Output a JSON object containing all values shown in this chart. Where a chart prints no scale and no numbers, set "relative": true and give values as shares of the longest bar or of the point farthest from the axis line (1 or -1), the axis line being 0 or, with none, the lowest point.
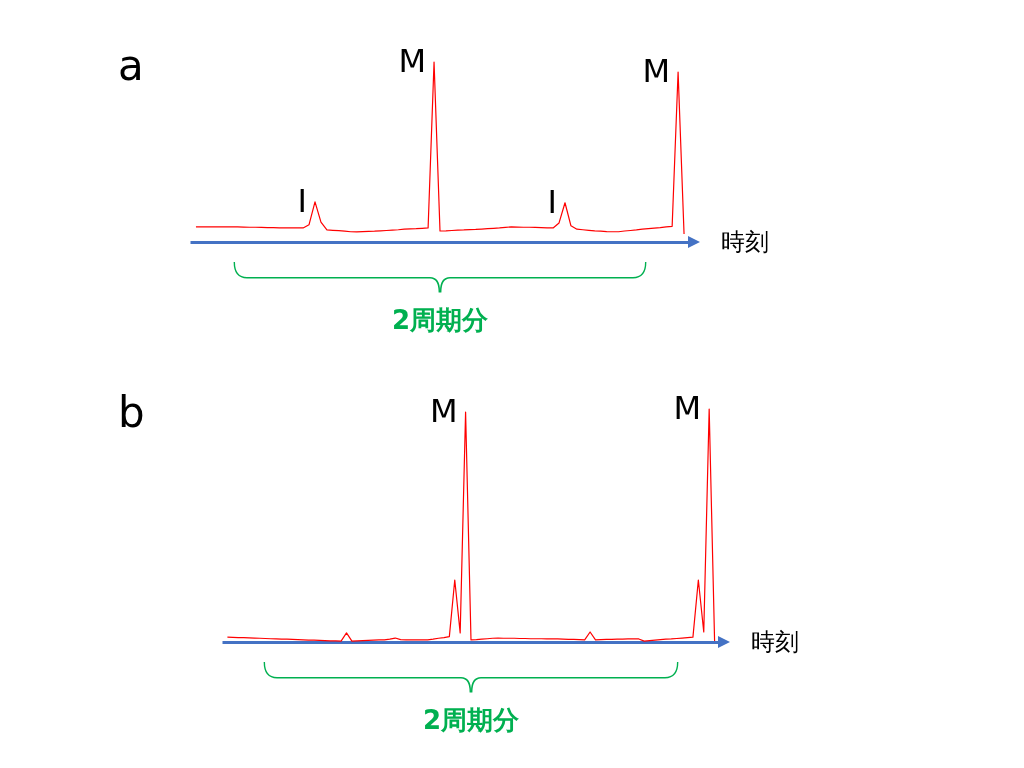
{
  "chart_data": [
    {
      "type": "line",
      "title": "a",
      "xlabel": "時刻",
      "relative": true,
      "categories": [
        null,
        null,
        null,
        null,
        null,
        null,
        null,
        null,
        null,
        null,
        null,
        null,
        null,
        null,
        null,
        null,
        null,
        null,
        null,
        null,
        null,
        null,
        null,
        null,
        null,
        null,
        null,
        null,
        null,
        null,
        null,
        null,
        null,
        null,
        null,
        null,
        null,
        null,
        null,
        null,
        null,
        null,
        null,
        null,
        null,
        null,
        null,
        null,
        null,
        null,
        null,
        null,
        null,
        null,
        null,
        null,
        null,
        null,
        null,
        null,
        null,
        null,
        null,
        null,
        null,
        null,
        null,
        null,
        null,
        null,
        null,
        null,
        null,
        null,
        null,
        null,
        null,
        null,
        null,
        null,
        null,
        null,
        null
      ],
      "series": [
        {
          "color": "#ff0000",
          "values": [
            0.084,
            0.084,
            0.084,
            0.084,
            0.084,
            0.084,
            0.084,
            0.084,
            0.083,
            0.082,
            0.082,
            0.081,
            0.08,
            0.08,
            0.079,
            0.079,
            0.079,
            0.078,
            0.078,
            0.096,
            0.223,
            0.11,
            0.067,
            0.065,
            0.063,
            0.06,
            0.057,
            0.056,
            0.058,
            0.059,
            0.06,
            0.062,
            0.064,
            0.066,
            0.068,
            0.071,
            0.073,
            0.074,
            0.076,
            0.078,
            1.0,
            0.061,
            0.062,
            0.064,
            0.066,
            0.067,
            0.069,
            0.07,
            0.072,
            0.074,
            0.076,
            0.078,
            0.081,
            0.084,
            0.083,
            0.082,
            0.082,
            0.081,
            0.08,
            0.079,
            0.078,
            0.106,
            0.218,
            0.09,
            0.071,
            0.068,
            0.065,
            0.062,
            0.06,
            0.058,
            0.057,
            0.057,
            0.061,
            0.064,
            0.067,
            0.071,
            0.074,
            0.077,
            0.08,
            0.084,
            0.087,
            0.944,
            0.045
          ]
        }
      ],
      "annotations": [
        "I",
        "M",
        "I",
        "M",
        "2周期分"
      ]
    },
    {
      "type": "line",
      "title": "b",
      "xlabel": "時刻",
      "relative": true,
      "categories": [
        null,
        null,
        null,
        null,
        null,
        null,
        null,
        null,
        null,
        null,
        null,
        null,
        null,
        null,
        null,
        null,
        null,
        null,
        null,
        null,
        null,
        null,
        null,
        null,
        null,
        null,
        null,
        null,
        null,
        null,
        null,
        null,
        null,
        null,
        null,
        null,
        null,
        null,
        null,
        null,
        null,
        null,
        null,
        null,
        null,
        null,
        null,
        null,
        null,
        null,
        null,
        null,
        null,
        null,
        null,
        null,
        null,
        null,
        null,
        null,
        null,
        null,
        null,
        null,
        null,
        null,
        null,
        null,
        null,
        null,
        null,
        null,
        null,
        null,
        null,
        null,
        null,
        null,
        null,
        null,
        null,
        null,
        null,
        null,
        null,
        null,
        null,
        null,
        null,
        null,
        null
      ],
      "series": [
        {
          "color": "#ff0000",
          "values": [
            0.021,
            0.02,
            0.019,
            0.019,
            0.018,
            0.017,
            0.016,
            0.015,
            0.014,
            0.013,
            0.012,
            0.012,
            0.011,
            0.01,
            0.009,
            0.008,
            0.008,
            0.007,
            0.006,
            0.005,
            0.005,
            0.004,
            0.039,
            0.004,
            0.005,
            0.006,
            0.007,
            0.008,
            0.009,
            0.009,
            0.012,
            0.017,
            0.01,
            0.009,
            0.009,
            0.009,
            0.009,
            0.009,
            0.012,
            0.016,
            0.019,
            0.023,
            0.266,
            0.039,
            0.987,
            0.009,
            0.01,
            0.012,
            0.014,
            0.016,
            0.017,
            0.016,
            0.016,
            0.016,
            0.015,
            0.015,
            0.014,
            0.014,
            0.014,
            0.013,
            0.013,
            0.013,
            0.012,
            0.011,
            0.011,
            0.01,
            0.009,
            0.043,
            0.009,
            0.01,
            0.011,
            0.011,
            0.012,
            0.012,
            0.013,
            0.013,
            0.013,
            0.004,
            0.006,
            0.008,
            0.01,
            0.012,
            0.013,
            0.015,
            0.017,
            0.019,
            0.021,
            0.266,
            0.043,
            1.0,
            0.004
          ]
        }
      ],
      "annotations": [
        "M",
        "M",
        "2周期分"
      ]
    }
  ]
}
